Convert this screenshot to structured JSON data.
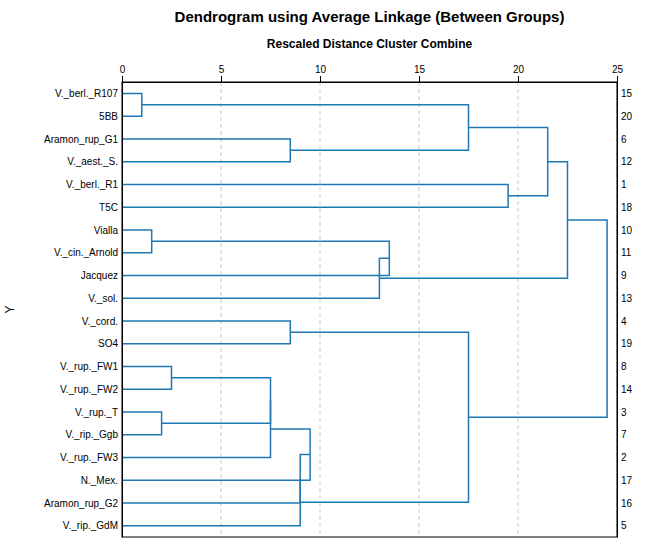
{
  "chart_data": {
    "type": "dendrogram",
    "title": "Dendrogram using Average Linkage (Between Groups)",
    "subtitle": "Rescaled Distance Cluster Combine",
    "ylabel": "Y",
    "categories": [
      "V._berl._R107",
      "5BB",
      "Aramon_rup_G1",
      "V._aest._S.",
      "V._berl._R1",
      "T5C",
      "Vialla",
      "V._cin._Arnold",
      "Jacquez",
      "V._sol.",
      "V._cord.",
      "SO4",
      "V._rup._FW1",
      "V._rup._FW2",
      "V._rup._T",
      "V._rip._Ggb",
      "V._rup._FW3",
      "N._Mex.",
      "Aramon_rup_G2",
      "V._rip._GdM"
    ],
    "ids": [
      "15",
      "20",
      "6",
      "12",
      "1",
      "18",
      "10",
      "11",
      "9",
      "13",
      "4",
      "19",
      "8",
      "14",
      "3",
      "7",
      "2",
      "17",
      "16",
      "5"
    ],
    "merges": [
      [
        0,
        1,
        1.0
      ],
      [
        2,
        3,
        8.5
      ],
      [
        20,
        21,
        17.5
      ],
      [
        4,
        5,
        19.5
      ],
      [
        22,
        23,
        21.5
      ],
      [
        6,
        7,
        1.5
      ],
      [
        25,
        8,
        13.5
      ],
      [
        26,
        9,
        13.0
      ],
      [
        24,
        27,
        22.5
      ],
      [
        10,
        11,
        8.5
      ],
      [
        12,
        13,
        2.5
      ],
      [
        14,
        15,
        2.0
      ],
      [
        30,
        31,
        7.5
      ],
      [
        32,
        16,
        7.5
      ],
      [
        33,
        17,
        9.5
      ],
      [
        34,
        18,
        9.0
      ],
      [
        35,
        19,
        9.0
      ],
      [
        29,
        36,
        17.5
      ],
      [
        28,
        37,
        24.5
      ]
    ],
    "xlim": [
      0,
      25
    ],
    "xticks": [
      0,
      5,
      10,
      15,
      20,
      25
    ],
    "grid": true
  }
}
